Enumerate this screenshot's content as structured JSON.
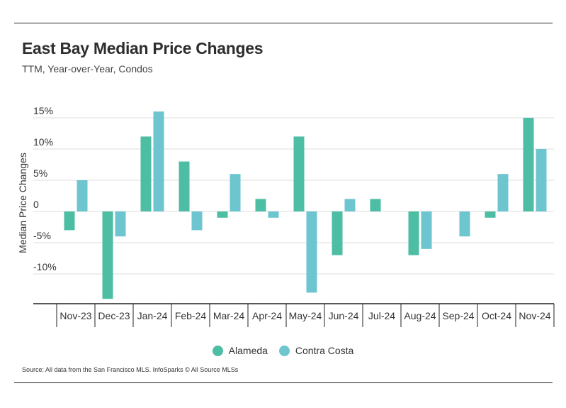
{
  "header": {
    "title": "East Bay Median Price Changes",
    "subtitle": "TTM, Year-over-Year, Condos"
  },
  "colors": {
    "alameda": "#4dbda3",
    "contra_costa": "#6cc5cf",
    "grid": "#dcdcdc",
    "axis": "#222222"
  },
  "legend": {
    "items": [
      "Alameda",
      "Contra Costa"
    ]
  },
  "footer": {
    "source": "Source:  All data from the San Francisco MLS. InfoSparks © All Source MLSs"
  },
  "chart_data": {
    "type": "bar",
    "title": "East Bay Median Price Changes",
    "subtitle": "TTM, Year-over-Year, Condos",
    "xlabel": "",
    "ylabel": "Median Price Changes",
    "ylim": [
      -14,
      16
    ],
    "yticks": [
      15,
      10,
      5,
      0,
      -5,
      -10
    ],
    "ytick_labels": [
      "15%",
      "10%",
      "5%",
      "0",
      "-5%",
      "-10%"
    ],
    "grid": true,
    "legend_position": "bottom-center",
    "categories": [
      "Nov-23",
      "Dec-23",
      "Jan-24",
      "Feb-24",
      "Mar-24",
      "Apr-24",
      "May-24",
      "Jun-24",
      "Jul-24",
      "Aug-24",
      "Sep-24",
      "Oct-24",
      "Nov-24"
    ],
    "series": [
      {
        "name": "Alameda",
        "values": [
          -3,
          -14,
          12,
          8,
          -1,
          2,
          12,
          -7,
          2,
          -7,
          0,
          -1,
          15
        ]
      },
      {
        "name": "Contra Costa",
        "values": [
          5,
          -4,
          16,
          -3,
          6,
          -1,
          -13,
          2,
          0,
          -6,
          -4,
          6,
          10
        ]
      }
    ]
  }
}
